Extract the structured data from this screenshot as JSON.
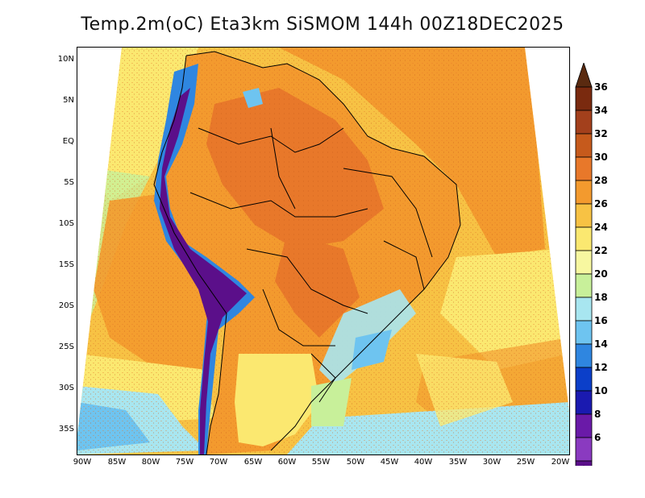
{
  "title": "Temp.2m(oC) Eta3km SiSMOM 144h 00Z18DEC2025",
  "lat_labels": [
    "10N",
    "5N",
    "EQ",
    "5S",
    "10S",
    "15S",
    "20S",
    "25S",
    "30S",
    "35S"
  ],
  "lon_labels": [
    "90W",
    "85W",
    "80W",
    "75W",
    "70W",
    "65W",
    "60W",
    "55W",
    "50W",
    "45W",
    "40W",
    "35W",
    "30W",
    "25W",
    "20W"
  ],
  "colorbar": {
    "labels": [
      "36",
      "34",
      "32",
      "30",
      "28",
      "26",
      "24",
      "22",
      "20",
      "18",
      "16",
      "14",
      "12",
      "10",
      "8",
      "6"
    ],
    "colors": [
      "#7a2a0f",
      "#a3401c",
      "#c65a1c",
      "#e8782a",
      "#f39a2e",
      "#f7c244",
      "#fbe870",
      "#f7f7a0",
      "#c8f09a",
      "#a8e6f0",
      "#6ec4f0",
      "#2f86e0",
      "#0b3fc9",
      "#1a1ab0",
      "#6a1aa8",
      "#8a3ac0",
      "#5b0f8a"
    ],
    "tip_top": "#5a2a10",
    "tip_bottom": "#4b0a7a"
  }
}
